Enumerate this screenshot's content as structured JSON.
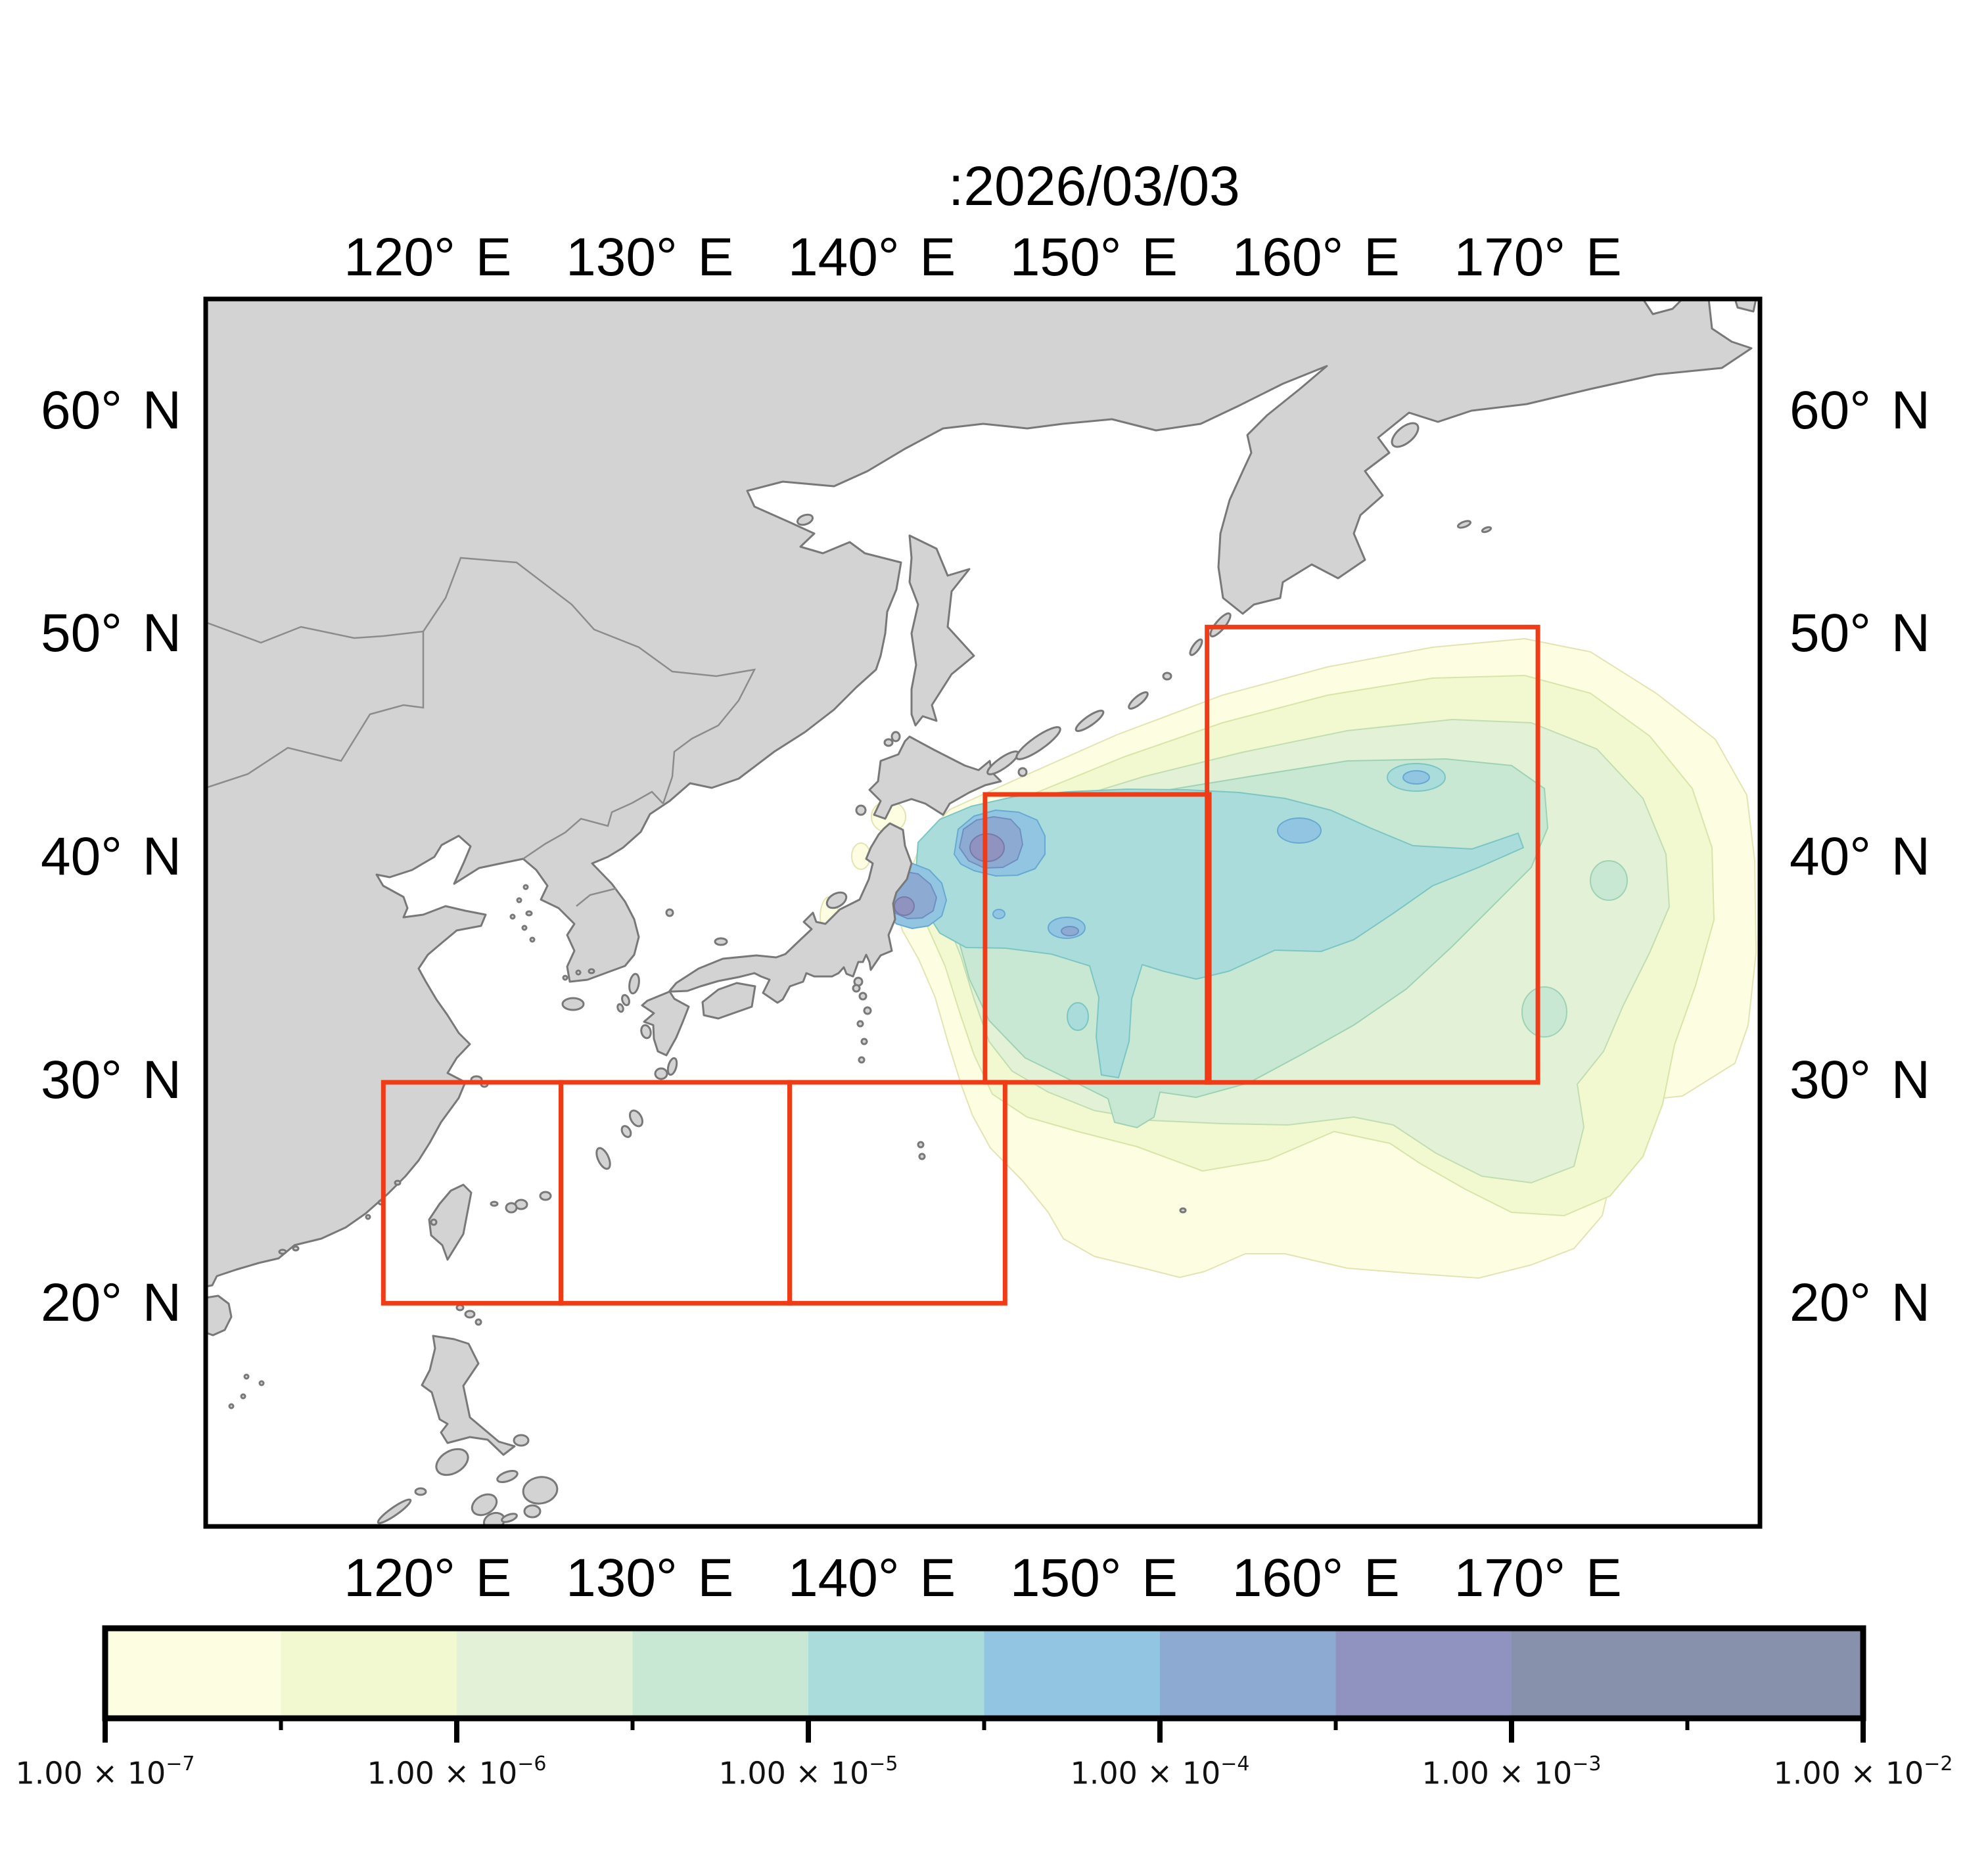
{
  "title": ":2026/03/03",
  "map": {
    "extent": {
      "lon_min": 110,
      "lon_max": 180,
      "lat_min": 10,
      "lat_max": 65
    },
    "lon_ticks": [
      {
        "lon": 120,
        "label": "120° E"
      },
      {
        "lon": 130,
        "label": "130° E"
      },
      {
        "lon": 140,
        "label": "140° E"
      },
      {
        "lon": 150,
        "label": "150° E"
      },
      {
        "lon": 160,
        "label": "160° E"
      },
      {
        "lon": 170,
        "label": "170° E"
      }
    ],
    "lat_ticks": [
      {
        "lat": 60,
        "label": "60° N"
      },
      {
        "lat": 50,
        "label": "50° N"
      },
      {
        "lat": 40,
        "label": "40° N"
      },
      {
        "lat": 30,
        "label": "30° N"
      },
      {
        "lat": 20,
        "label": "20° N"
      }
    ],
    "sea_color": "#ffffff",
    "land_color": "#d3d3d3",
    "coast_color": "#787878",
    "border_color": "#8c8c8c",
    "frame_color": "#000000"
  },
  "regions": {
    "outline_color": "#f03b17",
    "boxes": [
      {
        "name": "offshore-north-box",
        "lon_min": 155.1,
        "lon_max": 170.0,
        "lat_min": 29.9,
        "lat_max": 50.3
      },
      {
        "name": "offshore-central-box",
        "lon_min": 145.1,
        "lon_max": 155.2,
        "lat_min": 29.9,
        "lat_max": 42.8
      },
      {
        "name": "south-west-box",
        "lon_min": 118.0,
        "lon_max": 126.0,
        "lat_min": 20.0,
        "lat_max": 29.9
      },
      {
        "name": "south-middle-box",
        "lon_min": 126.0,
        "lon_max": 136.3,
        "lat_min": 20.0,
        "lat_max": 29.9
      },
      {
        "name": "south-east-box",
        "lon_min": 136.3,
        "lon_max": 146.0,
        "lat_min": 20.0,
        "lat_max": 29.9
      }
    ]
  },
  "colorbar": {
    "scale": "log10",
    "range_exp": [
      -7,
      -2
    ],
    "segments": [
      {
        "from_exp": -7.0,
        "to_exp": -6.5,
        "color": "#fdfde2",
        "edge": "#e3e3b4"
      },
      {
        "from_exp": -6.5,
        "to_exp": -6.0,
        "color": "#f2f8d0",
        "edge": "#d8e5a8"
      },
      {
        "from_exp": -6.0,
        "to_exp": -5.5,
        "color": "#e3f1d6",
        "edge": "#c2ddb2"
      },
      {
        "from_exp": -5.5,
        "to_exp": -5.0,
        "color": "#c8e8d4",
        "edge": "#9fd2b4"
      },
      {
        "from_exp": -5.0,
        "to_exp": -4.5,
        "color": "#a9dcda",
        "edge": "#7dc5c3"
      },
      {
        "from_exp": -4.5,
        "to_exp": -4.0,
        "color": "#92c5e1",
        "edge": "#68a9d2"
      },
      {
        "from_exp": -4.0,
        "to_exp": -3.5,
        "color": "#8dabd2",
        "edge": "#6f8fc0"
      },
      {
        "from_exp": -3.5,
        "to_exp": -3.0,
        "color": "#9093bf",
        "edge": "#767aa9"
      },
      {
        "from_exp": -3.0,
        "to_exp": -2.0,
        "color": "#8791ab",
        "edge": "#6d7890"
      }
    ],
    "major_ticks": [
      {
        "exp": -7,
        "base": "1.00 × 10",
        "sup": "−7"
      },
      {
        "exp": -6,
        "base": "1.00 × 10",
        "sup": "−6"
      },
      {
        "exp": -5,
        "base": "1.00 × 10",
        "sup": "−5"
      },
      {
        "exp": -4,
        "base": "1.00 × 10",
        "sup": "−4"
      },
      {
        "exp": -3,
        "base": "1.00 × 10",
        "sup": "−3"
      },
      {
        "exp": -2,
        "base": "1.00 × 10",
        "sup": "−2"
      }
    ],
    "minor_tick_exps": [
      -6.5,
      -5.5,
      -4.5,
      -3.5,
      -2.5
    ]
  },
  "chart_data": {
    "type": "filled_contour_map",
    "title": ":2026/03/03",
    "date_shown": "2026/03/03",
    "projection": "equirectangular",
    "extent": {
      "lon": [
        110,
        180
      ],
      "lat": [
        10,
        65
      ]
    },
    "x_ticks": [
      "120° E",
      "130° E",
      "140° E",
      "150° E",
      "160° E",
      "170° E"
    ],
    "y_ticks": [
      "60° N",
      "50° N",
      "40° N",
      "30° N",
      "20° N"
    ],
    "contour_levels": [
      1e-07,
      3.16e-07,
      1e-06,
      3.16e-06,
      1e-05,
      3.16e-05,
      0.0001,
      0.000316,
      0.001,
      0.01
    ],
    "colorbar_tick_labels": [
      "1.00 × 10⁻⁷",
      "1.00 × 10⁻⁶",
      "1.00 × 10⁻⁵",
      "1.00 × 10⁻⁴",
      "1.00 × 10⁻³",
      "1.00 × 10⁻²"
    ],
    "plume": {
      "description": "Tracer plume spreading east from the Japanese Pacific coast near Fukushima (~141E, 37.4N) across the NW Pacific to ~179E between ~20N and ~50N",
      "maxima": [
        {
          "lon": 145.2,
          "lat": 40.4,
          "level": "3.16e-4 to 1e-3"
        },
        {
          "lon": 141.5,
          "lat": 37.8,
          "level": "3.16e-4 to 1e-3"
        }
      ],
      "high_band": {
        "lon": [
          141,
          169
        ],
        "lat": [
          32,
          43
        ],
        "level": ">= 1e-5"
      }
    },
    "region_boxes_lonlat": [
      [
        155.1,
        170.0,
        29.9,
        50.3
      ],
      [
        145.1,
        155.2,
        29.9,
        42.8
      ],
      [
        118.0,
        126.0,
        20.0,
        29.9
      ],
      [
        126.0,
        136.3,
        20.0,
        29.9
      ],
      [
        136.3,
        146.0,
        20.0,
        29.9
      ]
    ]
  }
}
